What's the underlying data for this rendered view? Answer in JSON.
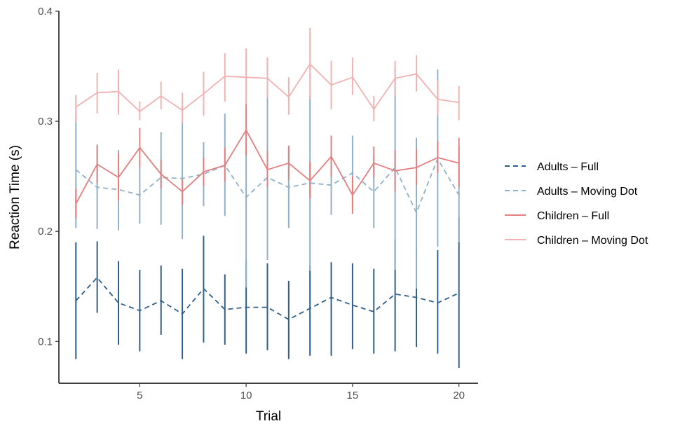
{
  "chart_data": {
    "type": "line",
    "title": "",
    "xlabel": "Trial",
    "ylabel": "Reaction Time (s)",
    "xlim": [
      1.2,
      20.9
    ],
    "ylim": [
      0.062,
      0.4
    ],
    "xticks": [
      5,
      10,
      15,
      20
    ],
    "yticks": [
      0.1,
      0.2,
      0.3,
      0.4
    ],
    "xtick_labels": [
      "5",
      "10",
      "15",
      "20"
    ],
    "ytick_labels": [
      "0.1",
      "0.2",
      "0.3",
      "0.4"
    ],
    "grid": false,
    "legend_position": "right",
    "x": [
      2,
      3,
      4,
      5,
      6,
      7,
      8,
      9,
      10,
      11,
      12,
      13,
      14,
      15,
      16,
      17,
      18,
      19,
      20
    ],
    "series": [
      {
        "name": "Adults – Full",
        "color": "#2f5f8a",
        "dashed": true,
        "values": [
          0.137,
          0.158,
          0.135,
          0.128,
          0.137,
          0.125,
          0.148,
          0.129,
          0.131,
          0.131,
          0.12,
          0.13,
          0.14,
          0.133,
          0.127,
          0.143,
          0.14,
          0.135,
          0.144
        ],
        "lower": [
          0.084,
          0.126,
          0.097,
          0.091,
          0.106,
          0.084,
          0.099,
          0.097,
          0.089,
          0.092,
          0.084,
          0.087,
          0.087,
          0.093,
          0.089,
          0.091,
          0.095,
          0.089,
          0.076
        ],
        "upper": [
          0.19,
          0.191,
          0.173,
          0.165,
          0.169,
          0.166,
          0.196,
          0.161,
          0.174,
          0.171,
          0.155,
          0.169,
          0.172,
          0.171,
          0.166,
          0.193,
          0.185,
          0.183,
          0.213
        ]
      },
      {
        "name": "Adults – Moving Dot",
        "color": "#8fb0c8",
        "dashed": true,
        "values": [
          0.256,
          0.24,
          0.238,
          0.233,
          0.249,
          0.248,
          0.252,
          0.26,
          0.231,
          0.249,
          0.24,
          0.244,
          0.242,
          0.253,
          0.236,
          0.258,
          0.217,
          0.266,
          0.233
        ],
        "lower": [
          0.203,
          0.202,
          0.201,
          0.207,
          0.206,
          0.193,
          0.223,
          0.214,
          0.149,
          0.174,
          0.203,
          0.164,
          0.215,
          0.221,
          0.203,
          0.165,
          0.148,
          0.186,
          0.19
        ],
        "upper": [
          0.308,
          0.279,
          0.274,
          0.258,
          0.29,
          0.304,
          0.281,
          0.307,
          0.311,
          0.325,
          0.276,
          0.323,
          0.27,
          0.287,
          0.269,
          0.348,
          0.285,
          0.347,
          0.278
        ]
      },
      {
        "name": "Children – Full",
        "color": "#e57f7f",
        "dashed": false,
        "values": [
          0.225,
          0.261,
          0.249,
          0.276,
          0.252,
          0.236,
          0.254,
          0.26,
          0.292,
          0.256,
          0.262,
          0.246,
          0.268,
          0.233,
          0.262,
          0.255,
          0.258,
          0.267,
          0.262
        ],
        "lower": [
          0.212,
          0.244,
          0.228,
          0.258,
          0.239,
          0.224,
          0.241,
          0.245,
          0.269,
          0.24,
          0.247,
          0.23,
          0.25,
          0.216,
          0.249,
          0.236,
          0.242,
          0.253,
          0.24
        ],
        "upper": [
          0.239,
          0.278,
          0.271,
          0.294,
          0.265,
          0.248,
          0.267,
          0.276,
          0.316,
          0.273,
          0.278,
          0.263,
          0.287,
          0.25,
          0.277,
          0.274,
          0.275,
          0.282,
          0.285
        ]
      },
      {
        "name": "Children – Moving Dot",
        "color": "#f2b1b1",
        "dashed": false,
        "values": [
          0.313,
          0.326,
          0.327,
          0.309,
          0.323,
          0.31,
          0.325,
          0.341,
          0.34,
          0.339,
          0.322,
          0.352,
          0.333,
          0.34,
          0.311,
          0.339,
          0.343,
          0.32,
          0.317
        ],
        "lower": [
          0.299,
          0.307,
          0.306,
          0.301,
          0.311,
          0.298,
          0.305,
          0.318,
          0.316,
          0.321,
          0.306,
          0.32,
          0.311,
          0.324,
          0.3,
          0.323,
          0.327,
          0.305,
          0.301
        ],
        "upper": [
          0.324,
          0.344,
          0.347,
          0.318,
          0.336,
          0.326,
          0.345,
          0.362,
          0.366,
          0.358,
          0.34,
          0.385,
          0.355,
          0.358,
          0.323,
          0.355,
          0.36,
          0.337,
          0.332
        ]
      }
    ]
  }
}
